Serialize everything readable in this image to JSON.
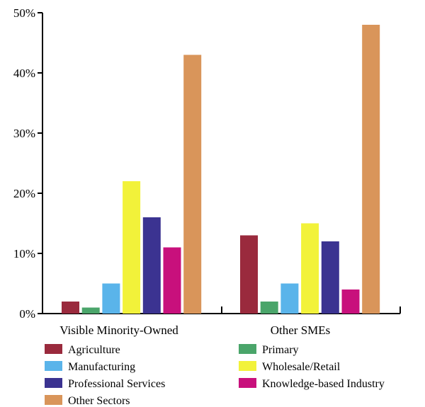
{
  "chart_data": {
    "type": "bar",
    "title": "",
    "xlabel": "",
    "ylabel": "",
    "ylim": [
      0,
      50
    ],
    "y_ticks": [
      {
        "value": 0,
        "label": "0%"
      },
      {
        "value": 10,
        "label": "10%"
      },
      {
        "value": 20,
        "label": "20%"
      },
      {
        "value": 30,
        "label": "30%"
      },
      {
        "value": 40,
        "label": "40%"
      },
      {
        "value": 50,
        "label": "50%"
      }
    ],
    "categories": [
      "Visible Minority-Owned",
      "Other SMEs"
    ],
    "series": [
      {
        "name": "Agriculture",
        "color": "#9a2a3d",
        "values": [
          2,
          13
        ]
      },
      {
        "name": "Primary",
        "color": "#4aa56a",
        "values": [
          1,
          2
        ]
      },
      {
        "name": "Manufacturing",
        "color": "#5ab4ea",
        "values": [
          5,
          5
        ]
      },
      {
        "name": "Wholesale/Retail",
        "color": "#f2f23a",
        "values": [
          22,
          15
        ]
      },
      {
        "name": "Professional Services",
        "color": "#3b3391",
        "values": [
          16,
          12
        ]
      },
      {
        "name": "Knowledge-based Industry",
        "color": "#c8107c",
        "values": [
          11,
          4
        ]
      },
      {
        "name": "Other Sectors",
        "color": "#d9955a",
        "values": [
          43,
          48
        ]
      }
    ],
    "legend_position": "bottom",
    "grid": false
  }
}
